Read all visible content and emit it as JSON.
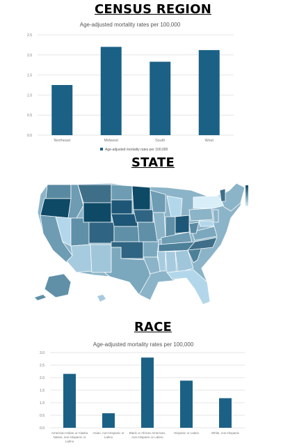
{
  "sections": {
    "region_title": "CENSUS REGION",
    "state_title": "STATE",
    "race_title": "RACE"
  },
  "colors": {
    "bar": "#1b6186",
    "grid": "#e6e6e6",
    "axis_text": "#777777",
    "map_dark": "#0e4a66",
    "map_light": "#c5e3f2"
  },
  "chart_data": [
    {
      "type": "bar",
      "title": "Age-adjusted mortality rates per 100,000",
      "categories": [
        "Northeast",
        "Midwest",
        "South",
        "West"
      ],
      "series": [
        {
          "name": "Age-adjusted mortality rates per 100,000",
          "values": [
            1.25,
            2.2,
            1.83,
            2.12
          ]
        }
      ],
      "yticks": [
        "0.0",
        "0.5",
        "1.0",
        "1.5",
        "2.0",
        "2.5"
      ],
      "ylim": [
        0,
        2.5
      ],
      "grid": true,
      "legend": "bottom"
    },
    {
      "type": "bar",
      "title": "Age-adjusted mortality rates per 100,000",
      "categories": [
        "American Indian or Alaska Native, non-Hispanic or Latino",
        "Asian, non-Hispanic or Latino",
        "Black or African American, non-Hispanic or Latino",
        "Hispanic or Latino",
        "White, non-Hispanic"
      ],
      "series": [
        {
          "values": [
            2.15,
            0.58,
            2.8,
            1.88,
            1.18
          ]
        }
      ],
      "yticks": [
        "0.0",
        "0.5",
        "1.0",
        "1.5",
        "2.0",
        "2.5",
        "3.0"
      ],
      "ylim": [
        0,
        3.0
      ],
      "grid": true
    }
  ]
}
